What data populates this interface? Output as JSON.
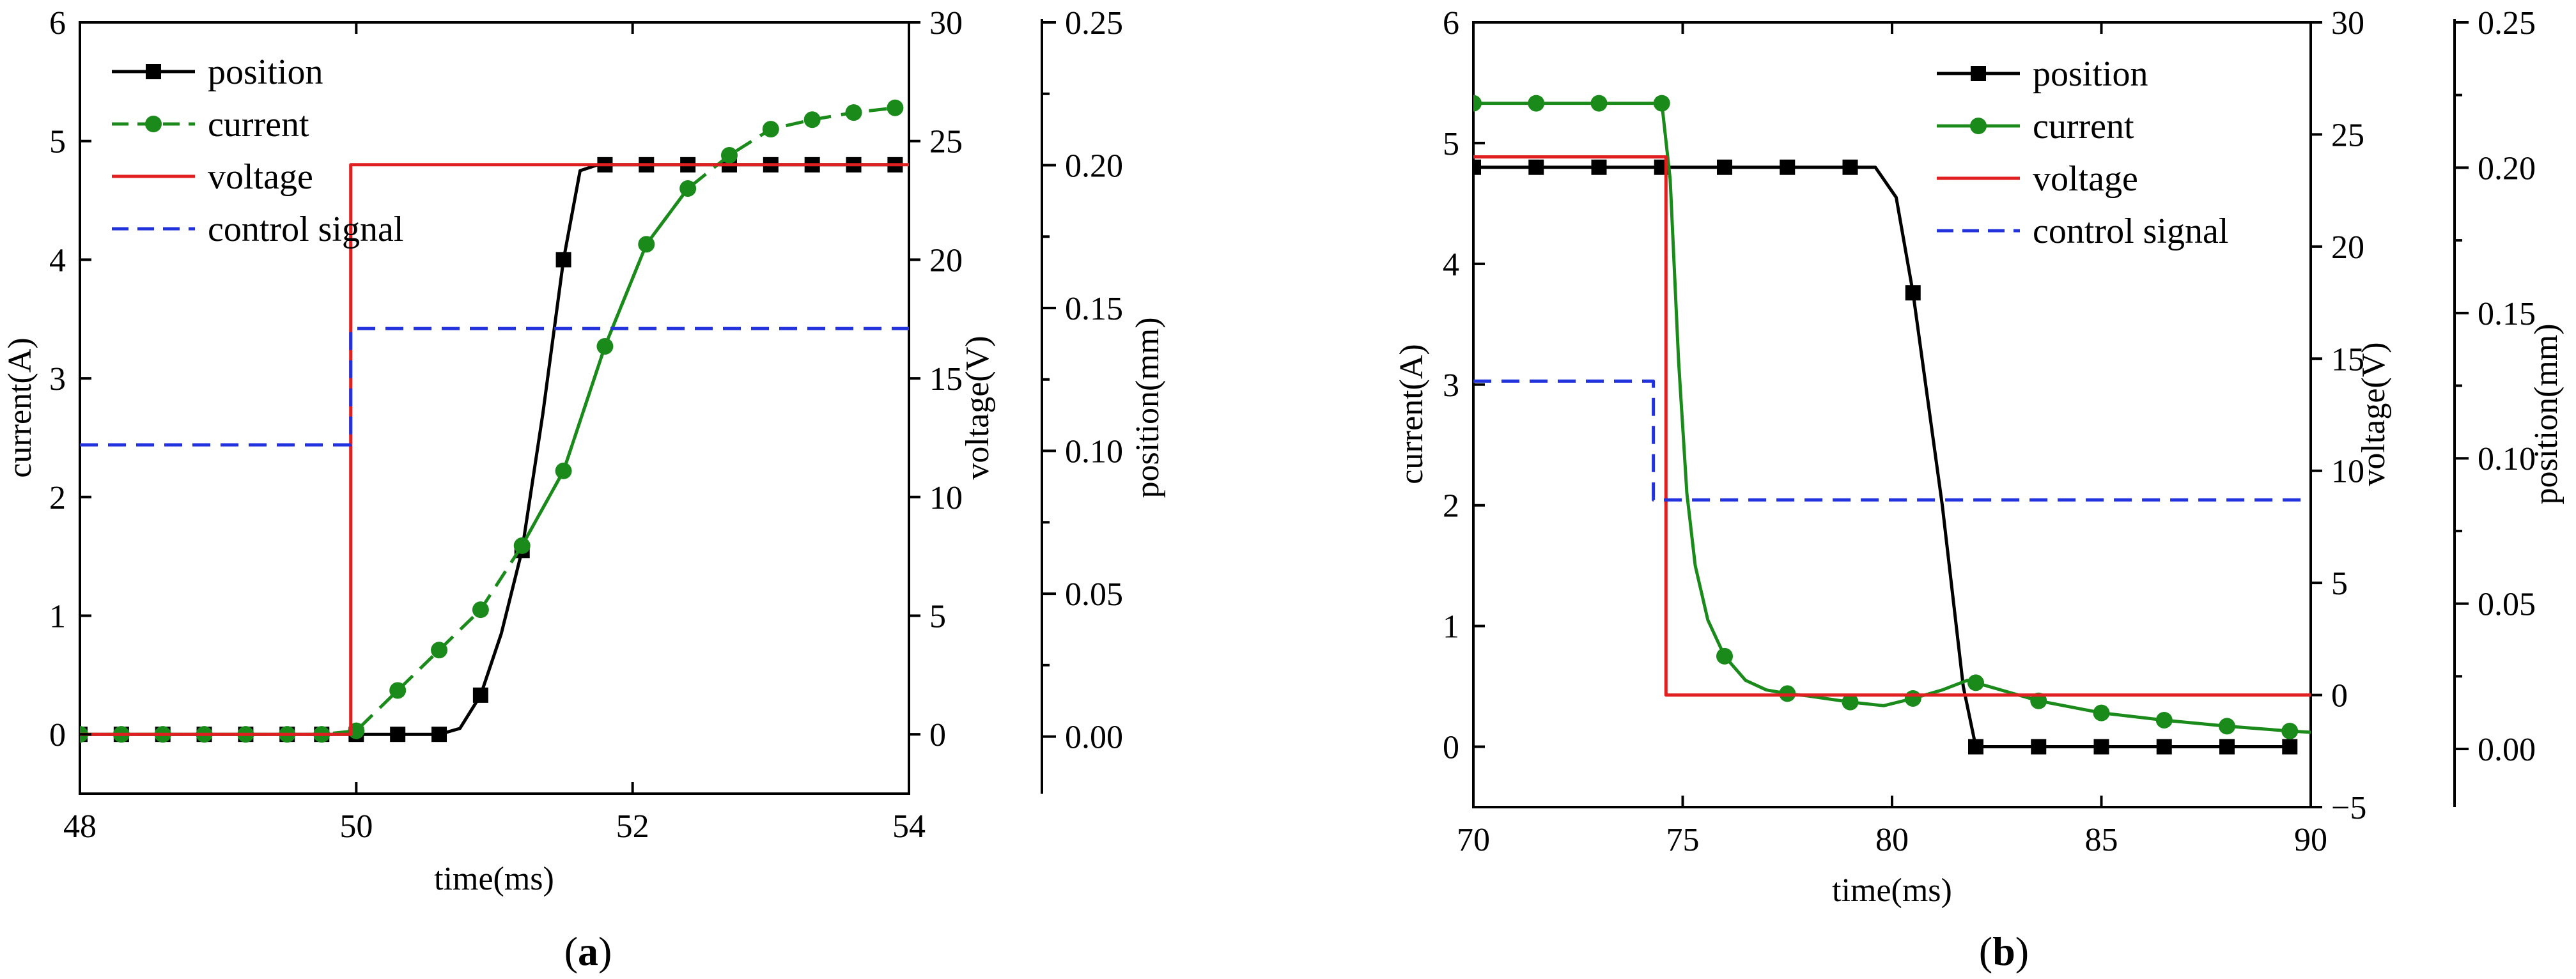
{
  "chart_data": [
    {
      "panel_label": "a",
      "type": "line",
      "title": "",
      "xlabel": "time(ms)",
      "xlim": [
        48,
        54
      ],
      "xticks": [
        48,
        50,
        52,
        54
      ],
      "axes": {
        "current": {
          "label": "current(A)",
          "lim": [
            -0.5,
            6
          ],
          "ticks": [
            0,
            1,
            2,
            3,
            4,
            5,
            6
          ],
          "tick_labels": [
            "0",
            "1",
            "2",
            "3",
            "4",
            "5",
            "6"
          ]
        },
        "voltage": {
          "label": "voltage(V)",
          "lim": [
            -2.5,
            30
          ],
          "ticks": [
            0,
            5,
            10,
            15,
            20,
            25,
            30
          ],
          "tick_labels": [
            "0",
            "5",
            "10",
            "15",
            "20",
            "25",
            "30"
          ]
        },
        "position": {
          "label": "position(mm)",
          "lim": [
            -0.02,
            0.25
          ],
          "ticks": [
            0,
            0.05,
            0.1,
            0.15,
            0.2,
            0.25
          ],
          "tick_labels": [
            "0.00",
            "0.05",
            "0.10",
            "0.15",
            "0.20",
            "0.25"
          ]
        }
      },
      "legend": {
        "placement": "top-left",
        "entries": [
          "position",
          "current",
          "voltage",
          "control signal"
        ]
      },
      "series": [
        {
          "name": "position",
          "axis": "current",
          "color": "#000000",
          "marker": "square",
          "dash": "solid",
          "x": [
            48.0,
            48.3,
            48.6,
            48.9,
            49.2,
            49.5,
            49.75,
            50.0,
            50.3,
            50.6,
            50.75,
            50.9,
            51.05,
            51.2,
            51.35,
            51.5,
            51.62,
            51.75,
            51.8,
            52.1,
            52.4,
            52.7,
            53.0,
            53.3,
            53.6,
            53.9
          ],
          "y": [
            0,
            0,
            0,
            0,
            0,
            0,
            0,
            0,
            0,
            0,
            0.05,
            0.33,
            0.85,
            1.55,
            2.7,
            4.0,
            4.75,
            4.8,
            4.8,
            4.8,
            4.8,
            4.8,
            4.8,
            4.8,
            4.8,
            4.8
          ],
          "marker_x": [
            48.0,
            48.3,
            48.6,
            48.9,
            49.2,
            49.5,
            49.75,
            50.0,
            50.3,
            50.6,
            50.9,
            51.2,
            51.5,
            51.8,
            52.1,
            52.4,
            52.7,
            53.0,
            53.3,
            53.6,
            53.9
          ],
          "marker_y": [
            0,
            0,
            0,
            0,
            0,
            0,
            0,
            0,
            0,
            0,
            0.33,
            1.55,
            4.0,
            4.8,
            4.8,
            4.8,
            4.8,
            4.8,
            4.8,
            4.8,
            4.8
          ]
        },
        {
          "name": "current",
          "axis": "current",
          "color": "#1a8a1a",
          "marker": "circle",
          "dash": "dash",
          "x": [
            48.0,
            48.3,
            48.6,
            48.9,
            49.2,
            49.5,
            49.75,
            50.0,
            50.3,
            50.6,
            50.9,
            51.2,
            51.5,
            51.8,
            52.1,
            52.4,
            52.7,
            53.0,
            53.3,
            53.6,
            53.9
          ],
          "y": [
            0,
            0,
            0,
            0,
            0,
            0,
            0,
            0.03,
            0.37,
            0.71,
            1.05,
            1.59,
            2.22,
            3.27,
            4.13,
            4.6,
            4.88,
            5.1,
            5.18,
            5.24,
            5.28
          ],
          "solid_segment_x": [
            51.0,
            52.4
          ]
        },
        {
          "name": "voltage",
          "axis": "voltage",
          "color": "#e02020",
          "marker": "none",
          "dash": "solid",
          "x": [
            48.0,
            49.96,
            49.96,
            54.0
          ],
          "y": [
            0,
            0,
            24.0,
            24.0
          ]
        },
        {
          "name": "control signal",
          "axis": "voltage",
          "color": "#2233dd",
          "marker": "none",
          "dash": "dash",
          "x": [
            48.0,
            49.96,
            49.96,
            54.0
          ],
          "y": [
            12.2,
            12.2,
            17.1,
            17.1
          ]
        }
      ]
    },
    {
      "panel_label": "b",
      "type": "line",
      "title": "",
      "xlabel": "time(ms)",
      "xlim": [
        70,
        90
      ],
      "xticks": [
        70,
        75,
        80,
        85,
        90
      ],
      "axes": {
        "current": {
          "label": "current(A)",
          "lim": [
            -0.5,
            6
          ],
          "ticks": [
            0,
            1,
            2,
            3,
            4,
            5,
            6
          ],
          "tick_labels": [
            "0",
            "1",
            "2",
            "3",
            "4",
            "5",
            "6"
          ]
        },
        "voltage": {
          "label": "voltage(V)",
          "lim": [
            -5,
            30
          ],
          "ticks": [
            -5,
            0,
            5,
            10,
            15,
            20,
            25,
            30
          ],
          "tick_labels": [
            "−5",
            "0",
            "5",
            "10",
            "15",
            "20",
            "25",
            "30"
          ]
        },
        "position": {
          "label": "position(mm)",
          "lim": [
            -0.02,
            0.25
          ],
          "ticks": [
            0,
            0.05,
            0.1,
            0.15,
            0.2,
            0.25
          ],
          "tick_labels": [
            "0.00",
            "0.05",
            "0.10",
            "0.15",
            "0.20",
            "0.25"
          ]
        }
      },
      "legend": {
        "placement": "top-right",
        "entries": [
          "position",
          "current",
          "voltage",
          "control signal"
        ]
      },
      "series": [
        {
          "name": "position",
          "axis": "current",
          "color": "#000000",
          "marker": "square",
          "dash": "solid",
          "x": [
            70.0,
            71.5,
            73.0,
            74.5,
            76.0,
            77.5,
            79.0,
            79.6,
            80.1,
            80.5,
            81.2,
            81.7,
            82.0,
            83.5,
            85.0,
            86.5,
            88.0,
            89.5
          ],
          "y": [
            4.8,
            4.8,
            4.8,
            4.8,
            4.8,
            4.8,
            4.8,
            4.8,
            4.55,
            3.76,
            2.0,
            0.5,
            0,
            0,
            0,
            0,
            0,
            0
          ],
          "marker_x": [
            70.0,
            71.5,
            73.0,
            74.5,
            76.0,
            77.5,
            79.0,
            80.5,
            82.0,
            83.5,
            85.0,
            86.5,
            88.0,
            89.5
          ],
          "marker_y": [
            4.8,
            4.8,
            4.8,
            4.8,
            4.8,
            4.8,
            4.8,
            3.76,
            0,
            0,
            0,
            0,
            0,
            0
          ]
        },
        {
          "name": "current",
          "axis": "current",
          "color": "#1a8a1a",
          "marker": "circle",
          "dash": "solid",
          "x": [
            70.0,
            71.5,
            73.0,
            74.5,
            74.7,
            74.9,
            75.1,
            75.3,
            75.6,
            76.0,
            76.5,
            77.0,
            77.5,
            78.0,
            79.0,
            79.8,
            80.5,
            81.2,
            81.8,
            82.0,
            83.5,
            85.0,
            86.5,
            88.0,
            89.5,
            90.0
          ],
          "y": [
            5.33,
            5.33,
            5.33,
            5.33,
            4.7,
            3.2,
            2.1,
            1.5,
            1.05,
            0.75,
            0.55,
            0.47,
            0.44,
            0.42,
            0.37,
            0.34,
            0.4,
            0.47,
            0.55,
            0.53,
            0.38,
            0.28,
            0.22,
            0.17,
            0.13,
            0.12
          ],
          "marker_x": [
            70.0,
            71.5,
            73.0,
            74.5,
            76.0,
            77.5,
            79.0,
            80.5,
            82.0,
            83.5,
            85.0,
            86.5,
            88.0,
            89.5
          ],
          "marker_y": [
            5.33,
            5.33,
            5.33,
            5.33,
            0.75,
            0.44,
            0.37,
            0.4,
            0.53,
            0.38,
            0.28,
            0.22,
            0.17,
            0.13
          ]
        },
        {
          "name": "voltage",
          "axis": "voltage",
          "color": "#e02020",
          "marker": "none",
          "dash": "solid",
          "x": [
            70.0,
            74.6,
            74.6,
            90.0
          ],
          "y": [
            24.0,
            24.0,
            0,
            0
          ]
        },
        {
          "name": "control signal",
          "axis": "voltage",
          "color": "#2233dd",
          "marker": "none",
          "dash": "dash",
          "x": [
            70.0,
            74.3,
            74.3,
            90.0
          ],
          "y": [
            14.0,
            14.0,
            8.7,
            8.7
          ]
        }
      ]
    }
  ]
}
